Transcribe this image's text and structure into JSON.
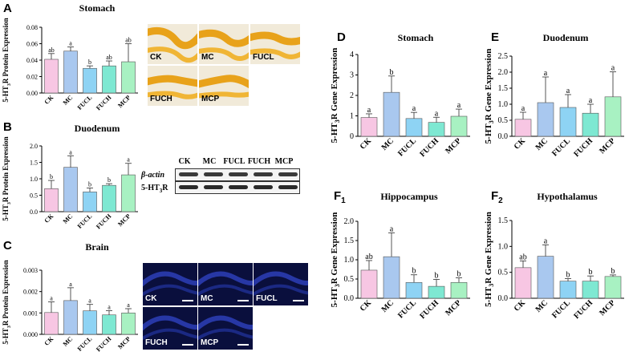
{
  "categories": [
    "CK",
    "MC",
    "FUCL",
    "FUCH",
    "MCP"
  ],
  "colors": [
    "#f7c6e3",
    "#a9c8ef",
    "#8ed3f4",
    "#7ee8d2",
    "#a8f1c2"
  ],
  "panels": {
    "A": {
      "letter": "A",
      "title": "Stomach",
      "ylabel_main": "5-HT",
      "ylabel_sub": "3",
      "ylabel_rest": "R Protein Expression"
    },
    "B": {
      "letter": "B",
      "title": "Duodenum",
      "ylabel_main": "5-HT",
      "ylabel_sub": "3",
      "ylabel_rest": "R Protein Expression"
    },
    "C": {
      "letter": "C",
      "title": "Brain",
      "ylabel_main": "5-HT",
      "ylabel_sub": "3",
      "ylabel_rest": "R Protein Expression"
    },
    "D": {
      "letter": "D",
      "title": "Stomach",
      "ylabel_main": "5-HT",
      "ylabel_sub": "3",
      "ylabel_rest": "R Gene Expression"
    },
    "E": {
      "letter": "E",
      "title": "Duodenum",
      "ylabel_main": "5-HT",
      "ylabel_sub": "3",
      "ylabel_rest": "R Gene Expression"
    },
    "F1": {
      "letter": "F",
      "letter_sub": "1",
      "title": "Hippocampus",
      "ylabel_main": "5-HT",
      "ylabel_sub": "3",
      "ylabel_rest": "R Gene Expression"
    },
    "F2": {
      "letter": "F",
      "letter_sub": "2",
      "title": "Hypothalamus",
      "ylabel_main": "5-HT",
      "ylabel_sub": "3",
      "ylabel_rest": "R Gene Expression"
    }
  },
  "stomach_images": [
    "CK",
    "MC",
    "FUCL",
    "FUCH",
    "MCP"
  ],
  "brain_images": [
    "CK",
    "MC",
    "FUCL",
    "FUCH",
    "MCP"
  ],
  "western_blot": {
    "lanes": [
      "CK",
      "MC",
      "FUCL",
      "FUCH",
      "MCP"
    ],
    "row1": "β-actin",
    "row2_main": "5-HT",
    "row2_sub": "3",
    "row2_rest": "R"
  },
  "chart_data": [
    {
      "id": "A",
      "type": "bar",
      "title": "Stomach",
      "categories": [
        "CK",
        "MC",
        "FUCL",
        "FUCH",
        "MCP"
      ],
      "values": [
        0.041,
        0.051,
        0.03,
        0.033,
        0.038
      ],
      "errors": [
        0.007,
        0.005,
        0.003,
        0.006,
        0.022
      ],
      "letters": [
        "ab",
        "a",
        "b",
        "ab",
        "ab"
      ],
      "ylim": [
        0,
        0.08
      ],
      "ticks": [
        "0.00",
        "0.02",
        "0.04",
        "0.06",
        "0.08"
      ],
      "tick_values": [
        0,
        0.02,
        0.04,
        0.06,
        0.08
      ]
    },
    {
      "id": "B",
      "type": "bar",
      "title": "Duodenum",
      "categories": [
        "CK",
        "MC",
        "FUCL",
        "FUCH",
        "MCP"
      ],
      "values": [
        0.7,
        1.35,
        0.6,
        0.8,
        1.12
      ],
      "errors": [
        0.25,
        0.35,
        0.12,
        0.05,
        0.35
      ],
      "letters": [
        "b",
        "a",
        "b",
        "b",
        "a"
      ],
      "ylim": [
        0,
        2.0
      ],
      "ticks": [
        "0.0",
        "0.5",
        "1.0",
        "1.5",
        "2.0"
      ],
      "tick_values": [
        0,
        0.5,
        1.0,
        1.5,
        2.0
      ]
    },
    {
      "id": "C",
      "type": "bar",
      "title": "Brain",
      "categories": [
        "CK",
        "MC",
        "FUCL",
        "FUCH",
        "MCP"
      ],
      "values": [
        0.00102,
        0.00158,
        0.0011,
        0.00091,
        0.001
      ],
      "errors": [
        0.0005,
        0.0006,
        0.0003,
        0.0002,
        0.0002
      ],
      "letters": [
        "a",
        "a",
        "a",
        "a",
        "a"
      ],
      "ylim": [
        0,
        0.003
      ],
      "ticks": [
        "0.000",
        "0.001",
        "0.002",
        "0.003"
      ],
      "tick_values": [
        0,
        0.001,
        0.002,
        0.003
      ]
    },
    {
      "id": "D",
      "type": "bar",
      "title": "Stomach",
      "categories": [
        "CK",
        "MC",
        "FUCL",
        "FUCH",
        "MCP"
      ],
      "values": [
        0.92,
        2.15,
        0.87,
        0.68,
        0.98
      ],
      "errors": [
        0.18,
        0.8,
        0.3,
        0.25,
        0.35
      ],
      "letters": [
        "a",
        "b",
        "a",
        "a",
        "a"
      ],
      "ylim": [
        0,
        4
      ],
      "ticks": [
        "0",
        "1",
        "2",
        "3",
        "4"
      ],
      "tick_values": [
        0,
        1,
        2,
        3,
        4
      ]
    },
    {
      "id": "E",
      "type": "bar",
      "title": "Duodenum",
      "categories": [
        "CK",
        "MC",
        "FUCL",
        "FUCH",
        "MCP"
      ],
      "values": [
        0.53,
        1.05,
        0.9,
        0.72,
        1.23
      ],
      "errors": [
        0.22,
        0.8,
        0.4,
        0.28,
        0.78
      ],
      "letters": [
        "a",
        "a",
        "a",
        "a",
        "a"
      ],
      "ylim": [
        0,
        2.5
      ],
      "ticks": [
        "0.0",
        "0.5",
        "1.0",
        "1.5",
        "2.0",
        "2.5"
      ],
      "tick_values": [
        0,
        0.5,
        1.0,
        1.5,
        2.0,
        2.5
      ]
    },
    {
      "id": "F1",
      "type": "bar",
      "title": "Hippocampus",
      "categories": [
        "CK",
        "MC",
        "FUCL",
        "FUCH",
        "MCP"
      ],
      "values": [
        0.73,
        1.08,
        0.41,
        0.31,
        0.41
      ],
      "errors": [
        0.25,
        0.62,
        0.2,
        0.18,
        0.12
      ],
      "letters": [
        "ab",
        "a",
        "b",
        "b",
        "b"
      ],
      "ylim": [
        0,
        2.0
      ],
      "ticks": [
        "0.0",
        "0.5",
        "1.0",
        "1.5",
        "2.0"
      ],
      "tick_values": [
        0,
        0.5,
        1.0,
        1.5,
        2.0
      ]
    },
    {
      "id": "F2",
      "type": "bar",
      "title": "Hypothalamus",
      "categories": [
        "CK",
        "MC",
        "FUCL",
        "FUCH",
        "MCP"
      ],
      "values": [
        0.59,
        0.81,
        0.33,
        0.33,
        0.42
      ],
      "errors": [
        0.13,
        0.22,
        0.05,
        0.1,
        0.03
      ],
      "letters": [
        "ab",
        "a",
        "b",
        "b",
        "b"
      ],
      "ylim": [
        0,
        1.5
      ],
      "ticks": [
        "0.0",
        "0.5",
        "1.0",
        "1.5"
      ],
      "tick_values": [
        0,
        0.5,
        1.0,
        1.5
      ]
    }
  ]
}
